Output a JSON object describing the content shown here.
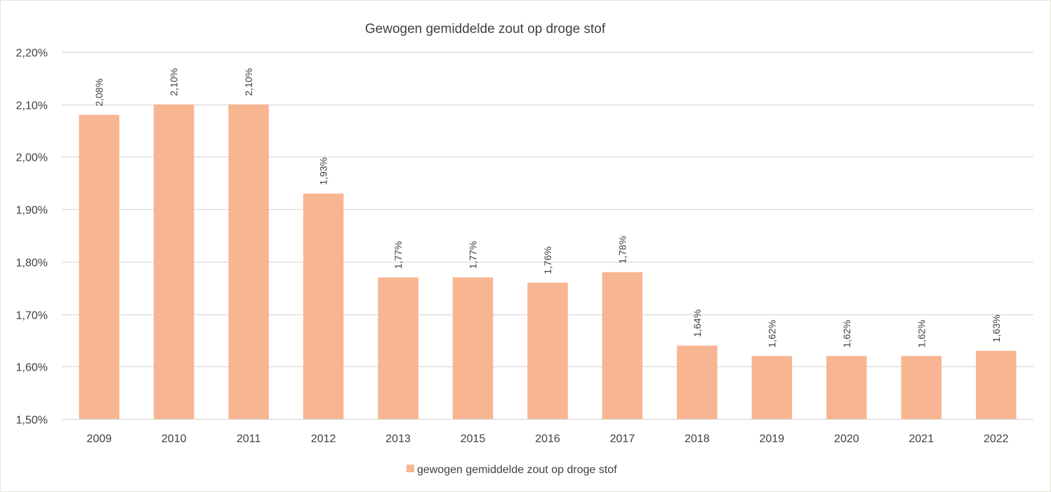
{
  "chart_data": {
    "type": "bar",
    "title": "Gewogen gemiddelde zout op droge stof",
    "xlabel": "",
    "ylabel": "",
    "categories": [
      "2009",
      "2010",
      "2011",
      "2012",
      "2013",
      "2015",
      "2016",
      "2017",
      "2018",
      "2019",
      "2020",
      "2021",
      "2022"
    ],
    "series": [
      {
        "name": "gewogen gemiddelde zout op droge stof",
        "values": [
          2.08,
          2.1,
          2.1,
          1.93,
          1.77,
          1.77,
          1.76,
          1.78,
          1.64,
          1.62,
          1.62,
          1.62,
          1.63
        ],
        "labels": [
          "2,08%",
          "2,10%",
          "2,10%",
          "1,93%",
          "1,77%",
          "1,77%",
          "1,76%",
          "1,78%",
          "1,64%",
          "1,62%",
          "1,62%",
          "1,62%",
          "1,63%"
        ],
        "color": "#f8b591"
      }
    ],
    "ylim": [
      1.5,
      2.2
    ],
    "yticks": [
      1.5,
      1.6,
      1.7,
      1.8,
      1.9,
      2.0,
      2.1,
      2.2
    ],
    "ytick_labels": [
      "1,50%",
      "1,60%",
      "1,70%",
      "1,80%",
      "1,90%",
      "2,00%",
      "2,10%",
      "2,20%"
    ],
    "grid": true,
    "legend": "bottom",
    "colors": {
      "bar": "#f8b591",
      "grid": "#d9d9d9",
      "text": "#404040"
    }
  }
}
